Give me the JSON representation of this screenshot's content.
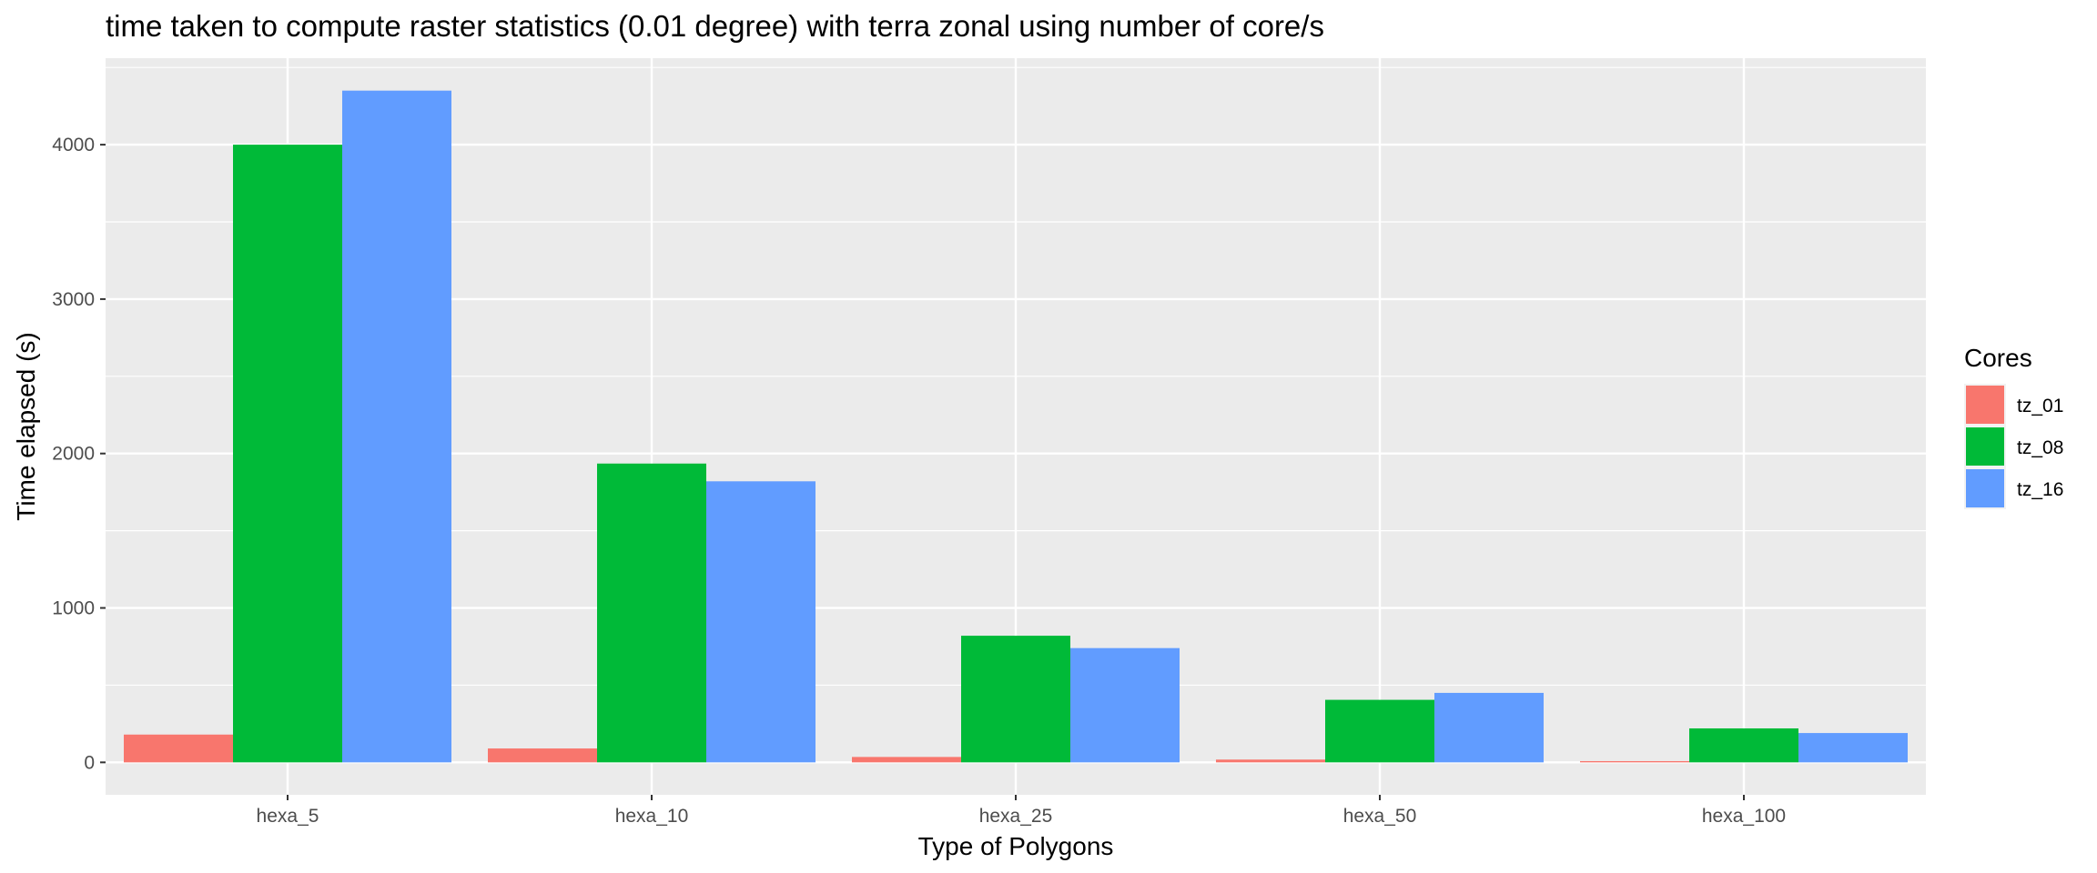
{
  "chart_data": {
    "type": "bar",
    "title": "time taken to compute raster statistics (0.01 degree) with terra zonal using number of core/s",
    "xlabel": "Type of Polygons",
    "ylabel": "Time elapsed (s)",
    "categories": [
      "hexa_5",
      "hexa_10",
      "hexa_25",
      "hexa_50",
      "hexa_100"
    ],
    "series": [
      {
        "name": "tz_01",
        "values": [
          180,
          90,
          35,
          18,
          8
        ],
        "color": "#F8766D"
      },
      {
        "name": "tz_08",
        "values": [
          4000,
          1935,
          820,
          405,
          220
        ],
        "color": "#00BA38"
      },
      {
        "name": "tz_16",
        "values": [
          4350,
          1820,
          740,
          450,
          190
        ],
        "color": "#619CFF"
      }
    ],
    "ylim": [
      -210,
      4560
    ],
    "yticks": [
      0,
      1000,
      2000,
      3000,
      4000
    ],
    "grid": true,
    "legend": {
      "title": "Cores",
      "position": "right"
    },
    "panel_background": "#EBEBEB",
    "grid_color": "#FFFFFF"
  }
}
